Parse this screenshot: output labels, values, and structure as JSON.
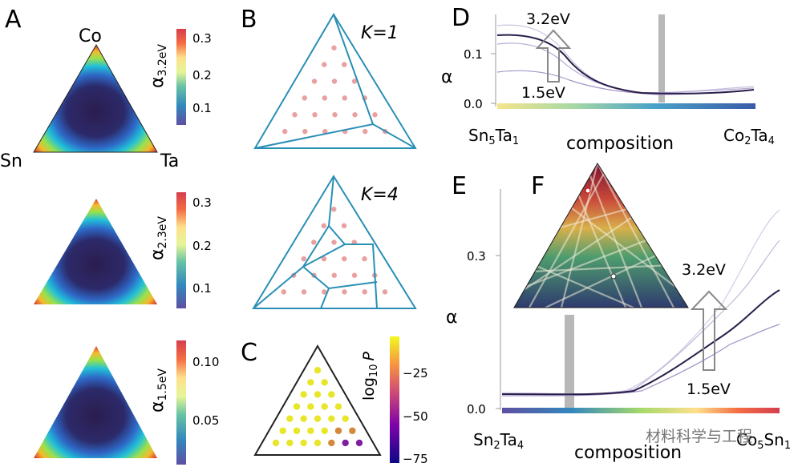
{
  "panels": {
    "A": {
      "letter": "A",
      "vertices": {
        "top": "Co",
        "left": "Sn",
        "right": "Ta"
      },
      "colorbars": [
        {
          "label": "α",
          "sub": "3.2eV",
          "ticks": [
            "0.3",
            "0.2",
            "0.1"
          ]
        },
        {
          "label": "α",
          "sub": "2.3eV",
          "ticks": [
            "0.3",
            "0.2",
            "0.1"
          ]
        },
        {
          "label": "α",
          "sub": "1.5eV",
          "ticks": [
            "0.10",
            "0.05"
          ]
        }
      ]
    },
    "B": {
      "letter": "B",
      "k1": "K=1",
      "k4": "K=4"
    },
    "C": {
      "letter": "C",
      "cbar_label": "log",
      "cbar_sub": "10",
      "cbar_var": "P",
      "ticks": [
        "−25",
        "−50",
        "−75"
      ]
    },
    "D": {
      "letter": "D",
      "ylabel": "α",
      "yticks": [
        "0.1",
        "0.0"
      ],
      "arrow_top": "3.2eV",
      "arrow_bottom": "1.5eV",
      "x_left": "Sn",
      "x_left_s1": "5",
      "x_left_m": "Ta",
      "x_left_s2": "1",
      "xlabel": "composition",
      "x_right": "Co",
      "x_right_s1": "2",
      "x_right_m": "Ta",
      "x_right_s2": "4"
    },
    "E": {
      "letter": "E",
      "ylabel": "α",
      "yticks": [
        "0.3",
        "0.0"
      ],
      "arrow_top": "3.2eV",
      "arrow_bottom": "1.5eV",
      "x_left": "Sn",
      "x_left_s1": "2",
      "x_left_m": "Ta",
      "x_left_s2": "4",
      "xlabel": "composition",
      "x_right": "Co",
      "x_right_s1": "5",
      "x_right_m": "Sn",
      "x_right_s2": "1"
    },
    "F": {
      "letter": "F"
    }
  },
  "watermark": "材料科学与工程",
  "colors": {
    "edge": "#2a8fb5",
    "dot": "#e8a0a0",
    "gray_band": "#b8b8b8"
  }
}
